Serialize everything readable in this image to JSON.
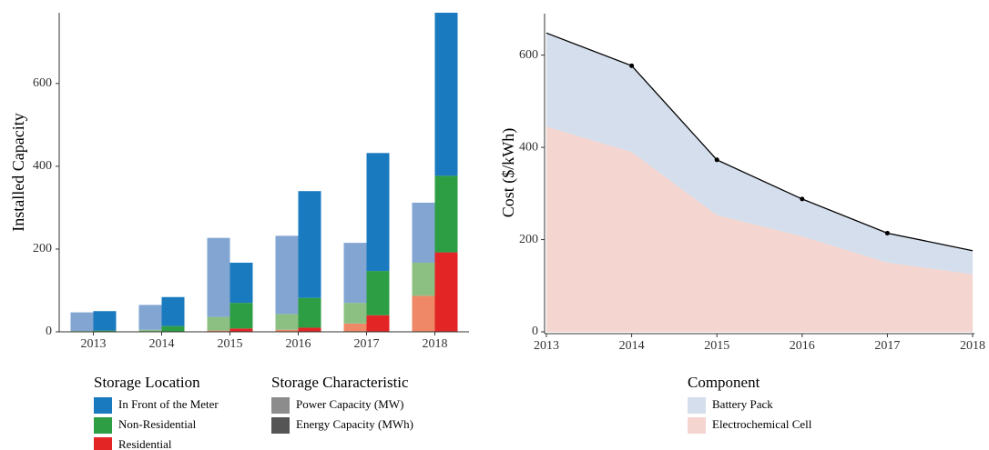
{
  "chart_data": [
    {
      "type": "bar",
      "stacked": true,
      "y_label": "Installed Capacity",
      "categories": [
        "2013",
        "2014",
        "2015",
        "2016",
        "2017",
        "2018"
      ],
      "ylim": [
        0,
        771
      ],
      "yticks": [
        0,
        200,
        400,
        600
      ],
      "legend_title": "Storage Location",
      "characteristic_title": "Storage Characteristic",
      "characteristics": [
        {
          "name": "Power Capacity (MW)",
          "color": "#8c8c8c"
        },
        {
          "name": "Energy Capacity (MWh)",
          "color": "#555555"
        }
      ],
      "series": [
        {
          "name": "Residential",
          "colors": [
            "#ee8866",
            "#e32526"
          ],
          "values": [
            [
              0,
              1,
              3,
              5,
              20,
              87
            ],
            [
              0,
              1,
              8,
              10,
              40,
              192
            ]
          ]
        },
        {
          "name": "Non-Residential",
          "colors": [
            "#8cc083",
            "#2e9e44"
          ],
          "values": [
            [
              2,
              4,
              33,
              38,
              50,
              80
            ],
            [
              3,
              13,
              62,
              72,
              107,
              185
            ]
          ]
        },
        {
          "name": "In Front of the Meter",
          "colors": [
            "#82a5d2",
            "#1a7abf"
          ],
          "values": [
            [
              45,
              60,
              191,
              189,
              145,
              145
            ],
            [
              47,
              70,
              97,
              258,
              285,
              394
            ]
          ]
        }
      ]
    },
    {
      "type": "area",
      "stacked": true,
      "y_label": "Cost ($/kWh)",
      "x": [
        2013,
        2014,
        2015,
        2016,
        2017,
        2018
      ],
      "xlim": [
        2013,
        2018
      ],
      "xticks": [
        2013,
        2014,
        2015,
        2016,
        2017,
        2018
      ],
      "ylim": [
        0,
        690
      ],
      "yticks": [
        0,
        200,
        400,
        600
      ],
      "legend_title": "Component",
      "outline_color": "#000000",
      "series": [
        {
          "name": "Electrochemical Cell",
          "color": "#f4d5d0",
          "values": [
            445,
            390,
            253,
            207,
            150,
            125
          ]
        },
        {
          "name": "Battery Pack",
          "color": "#d4deec",
          "values": [
            203,
            187,
            120,
            81,
            64,
            51
          ]
        }
      ]
    }
  ]
}
